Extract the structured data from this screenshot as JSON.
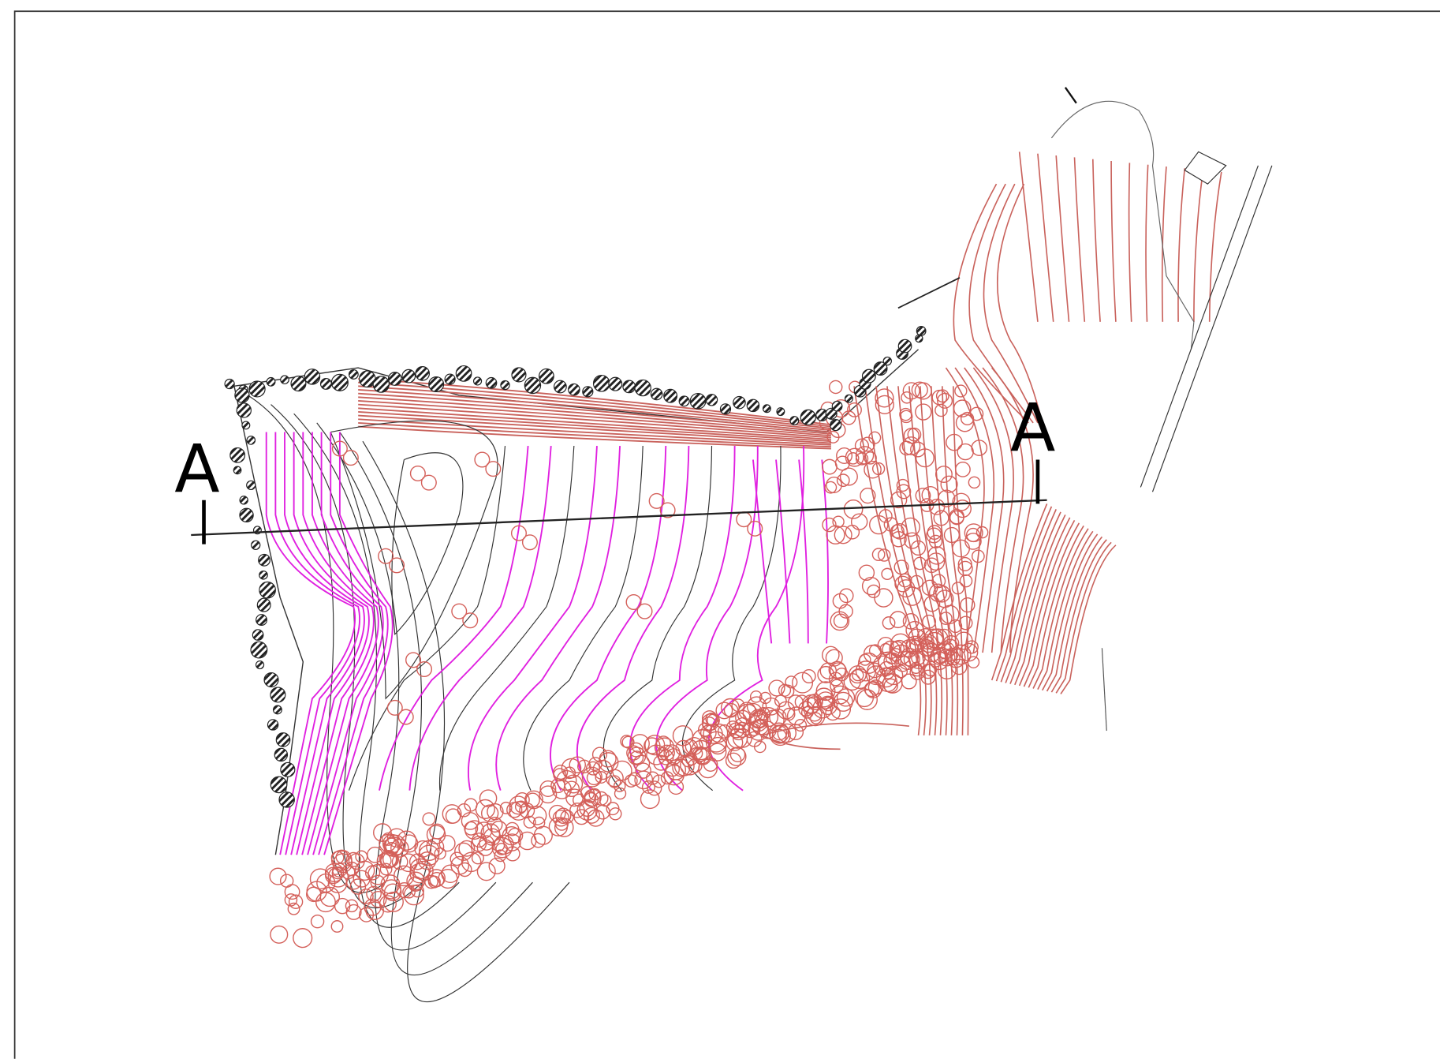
{
  "section": {
    "start_label": "A",
    "end_label": "A"
  }
}
